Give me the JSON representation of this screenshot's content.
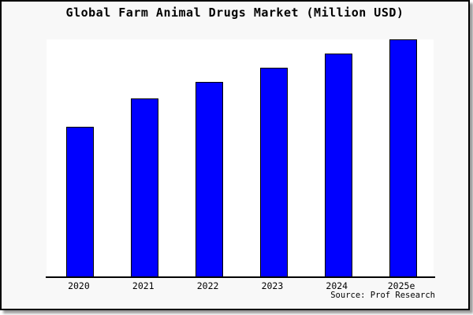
{
  "title": "Global Farm Animal Drugs Market (Million USD)",
  "source_caption": "Source: Prof Research",
  "colors": {
    "bar_fill": "#0000ff",
    "bar_border": "#000000",
    "frame_background": "#f8f8f8",
    "plot_background": "#ffffff",
    "axis": "#000000",
    "text": "#000000"
  },
  "chart_data": {
    "type": "bar",
    "title": "Global Farm Animal Drugs Market (Million USD)",
    "categories": [
      "2020",
      "2021",
      "2022",
      "2023",
      "2024",
      "2025e"
    ],
    "values": [
      63,
      75,
      82,
      88,
      94,
      100
    ],
    "value_basis": "relative bar heights estimated from pixels; no y-axis scale shown, tallest bar (2025e) = 100",
    "xlabel": "",
    "ylabel": "",
    "ylim": [
      0,
      100
    ],
    "grid": false,
    "legend_position": "none",
    "annotation": "Source: Prof Research",
    "bar_color": "#0000ff"
  }
}
